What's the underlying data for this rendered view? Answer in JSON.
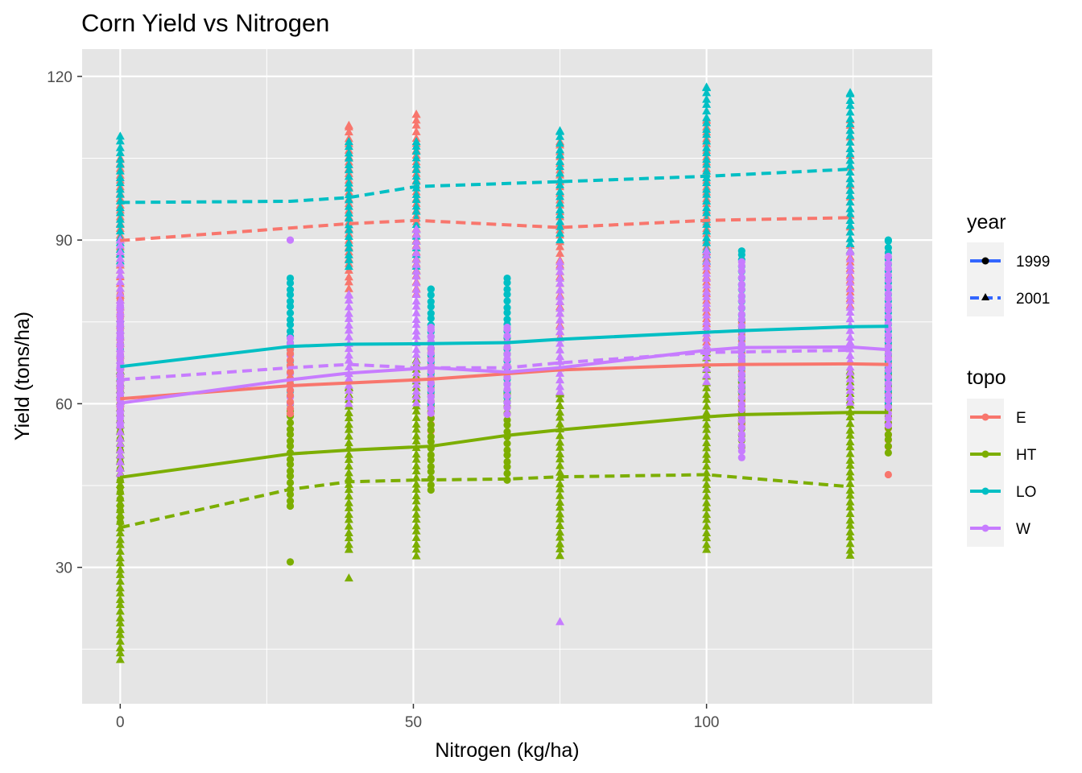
{
  "chart_data": {
    "type": "scatter",
    "title": "Corn Yield vs Nitrogen",
    "xlabel": "Nitrogen (kg/ha)",
    "ylabel": "Yield (tons/ha)",
    "xlim": [
      -6.5,
      138.5
    ],
    "ylim": [
      5,
      125
    ],
    "x_ticks": [
      0,
      50,
      100
    ],
    "y_ticks": [
      30,
      60,
      90,
      120
    ],
    "grid": true,
    "background": "#e5e5e5",
    "x_values": [
      0,
      29,
      39,
      50.5,
      53,
      66,
      75,
      100,
      106,
      124.5,
      131
    ],
    "topo_colors": {
      "E": "#f8766d",
      "HT": "#7cae00",
      "LO": "#00bfc4",
      "W": "#c77cff"
    },
    "legends": [
      {
        "title": "year",
        "entries": [
          {
            "label": "1999",
            "linetype": "solid",
            "shape": "circle"
          },
          {
            "label": "2001",
            "linetype": "dashed",
            "shape": "triangle"
          }
        ]
      },
      {
        "title": "topo",
        "entries": [
          {
            "label": "E",
            "color": "#f8766d"
          },
          {
            "label": "HT",
            "color": "#7cae00"
          },
          {
            "label": "LO",
            "color": "#00bfc4"
          },
          {
            "label": "W",
            "color": "#c77cff"
          }
        ]
      }
    ],
    "points": [
      {
        "topo": "E",
        "year": "2001",
        "x": 0,
        "y": [
          60,
          105
        ]
      },
      {
        "topo": "E",
        "year": "1999",
        "x": 0,
        "y": [
          59,
          80
        ]
      },
      {
        "topo": "HT",
        "year": "2001",
        "x": 0,
        "y": [
          13,
          66
        ]
      },
      {
        "topo": "HT",
        "year": "1999",
        "x": 0,
        "y": [
          38,
          58
        ]
      },
      {
        "topo": "LO",
        "year": "2001",
        "x": 0,
        "y": [
          86,
          109
        ]
      },
      {
        "topo": "LO",
        "year": "1999",
        "x": 0,
        "y": [
          62,
          75
        ]
      },
      {
        "topo": "W",
        "year": "2001",
        "x": 0,
        "y": [
          47,
          90
        ]
      },
      {
        "topo": "W",
        "year": "1999",
        "x": 0,
        "y": [
          56,
          78
        ]
      },
      {
        "topo": "HT",
        "year": "1999",
        "x": 29,
        "y": [
          41,
          60
        ],
        "outliers": [
          31
        ]
      },
      {
        "topo": "LO",
        "year": "1999",
        "x": 29,
        "y": [
          60,
          83
        ]
      },
      {
        "topo": "W",
        "year": "1999",
        "x": 29,
        "y": [
          60,
          72
        ],
        "outliers": [
          90
        ]
      },
      {
        "topo": "E",
        "year": "1999",
        "x": 29,
        "y": [
          58,
          70
        ]
      },
      {
        "topo": "E",
        "year": "2001",
        "x": 39,
        "y": [
          81,
          111
        ]
      },
      {
        "topo": "HT",
        "year": "2001",
        "x": 39,
        "y": [
          33,
          63
        ],
        "outliers": [
          28
        ]
      },
      {
        "topo": "LO",
        "year": "2001",
        "x": 39,
        "y": [
          85,
          108
        ]
      },
      {
        "topo": "W",
        "year": "2001",
        "x": 39,
        "y": [
          60,
          80
        ]
      },
      {
        "topo": "E",
        "year": "2001",
        "x": 50.5,
        "y": [
          80,
          113
        ]
      },
      {
        "topo": "HT",
        "year": "2001",
        "x": 50.5,
        "y": [
          32,
          68
        ]
      },
      {
        "topo": "LO",
        "year": "2001",
        "x": 50.5,
        "y": [
          84,
          108
        ]
      },
      {
        "topo": "W",
        "year": "2001",
        "x": 50.5,
        "y": [
          60,
          92
        ]
      },
      {
        "topo": "E",
        "year": "1999",
        "x": 53,
        "y": [
          55,
          70
        ]
      },
      {
        "topo": "HT",
        "year": "1999",
        "x": 53,
        "y": [
          44,
          60
        ]
      },
      {
        "topo": "LO",
        "year": "1999",
        "x": 53,
        "y": [
          60,
          81
        ]
      },
      {
        "topo": "W",
        "year": "1999",
        "x": 53,
        "y": [
          58,
          74
        ]
      },
      {
        "topo": "E",
        "year": "1999",
        "x": 66,
        "y": [
          58,
          72
        ]
      },
      {
        "topo": "HT",
        "year": "1999",
        "x": 66,
        "y": [
          46,
          62
        ]
      },
      {
        "topo": "LO",
        "year": "1999",
        "x": 66,
        "y": [
          60,
          83
        ]
      },
      {
        "topo": "W",
        "year": "1999",
        "x": 66,
        "y": [
          58,
          74
        ]
      },
      {
        "topo": "E",
        "year": "2001",
        "x": 75,
        "y": [
          72,
          108
        ]
      },
      {
        "topo": "HT",
        "year": "2001",
        "x": 75,
        "y": [
          32,
          62
        ]
      },
      {
        "topo": "LO",
        "year": "2001",
        "x": 75,
        "y": [
          90,
          110
        ]
      },
      {
        "topo": "W",
        "year": "2001",
        "x": 75,
        "y": [
          62,
          86
        ],
        "outliers": [
          20
        ]
      },
      {
        "topo": "E",
        "year": "2001",
        "x": 100,
        "y": [
          70,
          112
        ]
      },
      {
        "topo": "HT",
        "year": "2001",
        "x": 100,
        "y": [
          33,
          70
        ]
      },
      {
        "topo": "LO",
        "year": "2001",
        "x": 100,
        "y": [
          86,
          118
        ]
      },
      {
        "topo": "W",
        "year": "2001",
        "x": 100,
        "y": [
          64,
          88
        ]
      },
      {
        "topo": "E",
        "year": "1999",
        "x": 106,
        "y": [
          56,
          75
        ]
      },
      {
        "topo": "HT",
        "year": "1999",
        "x": 106,
        "y": [
          52,
          64
        ]
      },
      {
        "topo": "LO",
        "year": "1999",
        "x": 106,
        "y": [
          62,
          88
        ]
      },
      {
        "topo": "W",
        "year": "1999",
        "x": 106,
        "y": [
          50,
          86
        ]
      },
      {
        "topo": "E",
        "year": "2001",
        "x": 124.5,
        "y": [
          78,
          112
        ]
      },
      {
        "topo": "HT",
        "year": "2001",
        "x": 124.5,
        "y": [
          32,
          66
        ]
      },
      {
        "topo": "LO",
        "year": "2001",
        "x": 124.5,
        "y": [
          88,
          117
        ]
      },
      {
        "topo": "W",
        "year": "2001",
        "x": 124.5,
        "y": [
          60,
          88
        ]
      },
      {
        "topo": "E",
        "year": "1999",
        "x": 131,
        "y": [
          52,
          72
        ],
        "outliers": [
          47
        ]
      },
      {
        "topo": "HT",
        "year": "1999",
        "x": 131,
        "y": [
          51,
          66
        ]
      },
      {
        "topo": "LO",
        "year": "1999",
        "x": 131,
        "y": [
          60,
          90
        ]
      },
      {
        "topo": "W",
        "year": "1999",
        "x": 131,
        "y": [
          56,
          87
        ]
      }
    ],
    "series": [
      {
        "topo": "E",
        "year": "1999",
        "x": [
          0,
          29,
          39,
          53,
          66,
          75,
          100,
          106,
          124.5,
          131
        ],
        "y": [
          60.9,
          63.3,
          63.8,
          64.5,
          65.5,
          66.2,
          67.1,
          67.2,
          67.3,
          67.2
        ]
      },
      {
        "topo": "E",
        "year": "2001",
        "x": [
          0,
          39,
          50.5,
          75,
          100,
          124.5
        ],
        "y": [
          89.9,
          93.0,
          93.6,
          92.3,
          93.6,
          94.1
        ]
      },
      {
        "topo": "HT",
        "year": "1999",
        "x": [
          0,
          29,
          39,
          53,
          66,
          75,
          100,
          106,
          124.5,
          131
        ],
        "y": [
          46.5,
          50.8,
          51.5,
          52.2,
          54.2,
          55.2,
          57.6,
          58.0,
          58.4,
          58.4
        ]
      },
      {
        "topo": "HT",
        "year": "2001",
        "x": [
          0,
          29,
          39,
          50.5,
          66,
          75,
          100,
          124.5
        ],
        "y": [
          37.3,
          44.3,
          45.7,
          46.0,
          46.2,
          46.6,
          47.0,
          44.8
        ]
      },
      {
        "topo": "LO",
        "year": "1999",
        "x": [
          0,
          29,
          39,
          53,
          66,
          75,
          100,
          106,
          124.5,
          131
        ],
        "y": [
          66.8,
          70.5,
          70.9,
          71.0,
          71.2,
          71.8,
          73.1,
          73.4,
          74.1,
          74.2
        ]
      },
      {
        "topo": "LO",
        "year": "2001",
        "x": [
          0,
          29,
          39,
          50.5,
          75,
          100,
          124.5
        ],
        "y": [
          96.9,
          97.1,
          97.8,
          99.8,
          100.7,
          101.7,
          103.0
        ]
      },
      {
        "topo": "W",
        "year": "1999",
        "x": [
          0,
          29,
          39,
          53,
          66,
          75,
          100,
          106,
          124.5,
          131
        ],
        "y": [
          60.1,
          64.4,
          65.6,
          66.6,
          65.8,
          66.6,
          69.8,
          70.3,
          70.4,
          69.9
        ]
      },
      {
        "topo": "W",
        "year": "2001",
        "x": [
          0,
          29,
          39,
          50.5,
          66,
          75,
          100,
          124.5
        ],
        "y": [
          64.4,
          66.6,
          67.2,
          66.6,
          66.6,
          67.5,
          69.4,
          69.8
        ]
      }
    ]
  }
}
